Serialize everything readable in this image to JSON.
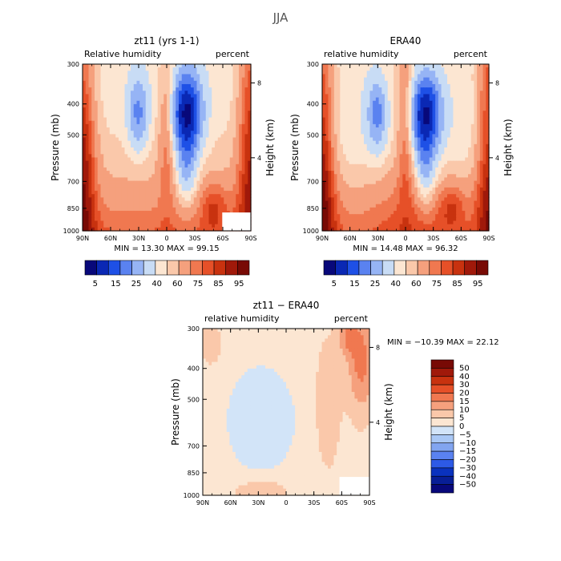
{
  "page_title": "JJA",
  "chart_data": [
    {
      "type": "heatmap",
      "title": "zt11 (yrs 1-1)",
      "subtitle_left": "Relative humidity",
      "subtitle_right": "percent",
      "ylabel": "Pressure (mb)",
      "ylabel_right": "Height (km)",
      "x_ticks": [
        "90N",
        "60N",
        "30N",
        "0",
        "30S",
        "60S",
        "90S"
      ],
      "y_ticks": [
        "300",
        "400",
        "500",
        "700",
        "850",
        "1000"
      ],
      "y_right_ticks": [
        "8",
        "4"
      ],
      "stats": {
        "min_label": "MIN =",
        "min": "13.30",
        "max_label": "MAX =",
        "max": "99.15"
      },
      "colorbar_labels": [
        "5",
        "15",
        "25",
        "40",
        "60",
        "75",
        "85",
        "95"
      ]
    },
    {
      "type": "heatmap",
      "title": "ERA40",
      "subtitle_left": "relative humidity",
      "subtitle_right": "percent",
      "ylabel": "Pressure (mb)",
      "ylabel_right": "Height (km)",
      "x_ticks": [
        "90N",
        "60N",
        "30N",
        "0",
        "30S",
        "60S",
        "90S"
      ],
      "y_ticks": [
        "300",
        "400",
        "500",
        "700",
        "850",
        "1000"
      ],
      "y_right_ticks": [
        "8",
        "4"
      ],
      "stats": {
        "min_label": "MIN =",
        "min": "14.48",
        "max_label": "MAX =",
        "max": "96.32"
      },
      "colorbar_labels": [
        "5",
        "15",
        "25",
        "40",
        "60",
        "75",
        "85",
        "95"
      ]
    },
    {
      "type": "heatmap",
      "title": "zt11 − ERA40",
      "subtitle_left": "relative humidity",
      "subtitle_right": "percent",
      "ylabel": "Pressure (mb)",
      "ylabel_right": "Height (km)",
      "x_ticks": [
        "90N",
        "60N",
        "30N",
        "0",
        "30S",
        "60S",
        "90S"
      ],
      "y_ticks": [
        "300",
        "400",
        "500",
        "700",
        "850",
        "1000"
      ],
      "y_right_ticks": [
        "8",
        "4"
      ],
      "stats": {
        "min_label": "MIN =",
        "min": "−10.39",
        "max_label": "MAX =",
        "max": "22.12"
      },
      "colorbar_labels": [
        "50",
        "40",
        "30",
        "20",
        "15",
        "10",
        "5",
        "0",
        "−5",
        "−10",
        "−15",
        "−20",
        "−30",
        "−40",
        "−50"
      ]
    }
  ],
  "colors": {
    "rh_scale": [
      "#08087a",
      "#0a28b4",
      "#1e50e6",
      "#5a82f0",
      "#96b4f5",
      "#c8dcf5",
      "#fce6d2",
      "#fac8aa",
      "#f5a07d",
      "#f07850",
      "#e65028",
      "#c8320f",
      "#a0190a",
      "#780a05"
    ],
    "diff_scale": [
      "#780a05",
      "#a0190a",
      "#c8320f",
      "#e65028",
      "#f07850",
      "#f5a07d",
      "#fac8aa",
      "#fce6d2",
      "#d2e4f8",
      "#aac8f5",
      "#82a5f0",
      "#5a82f0",
      "#2d5ae6",
      "#0a32be",
      "#081e96",
      "#08087a"
    ]
  }
}
